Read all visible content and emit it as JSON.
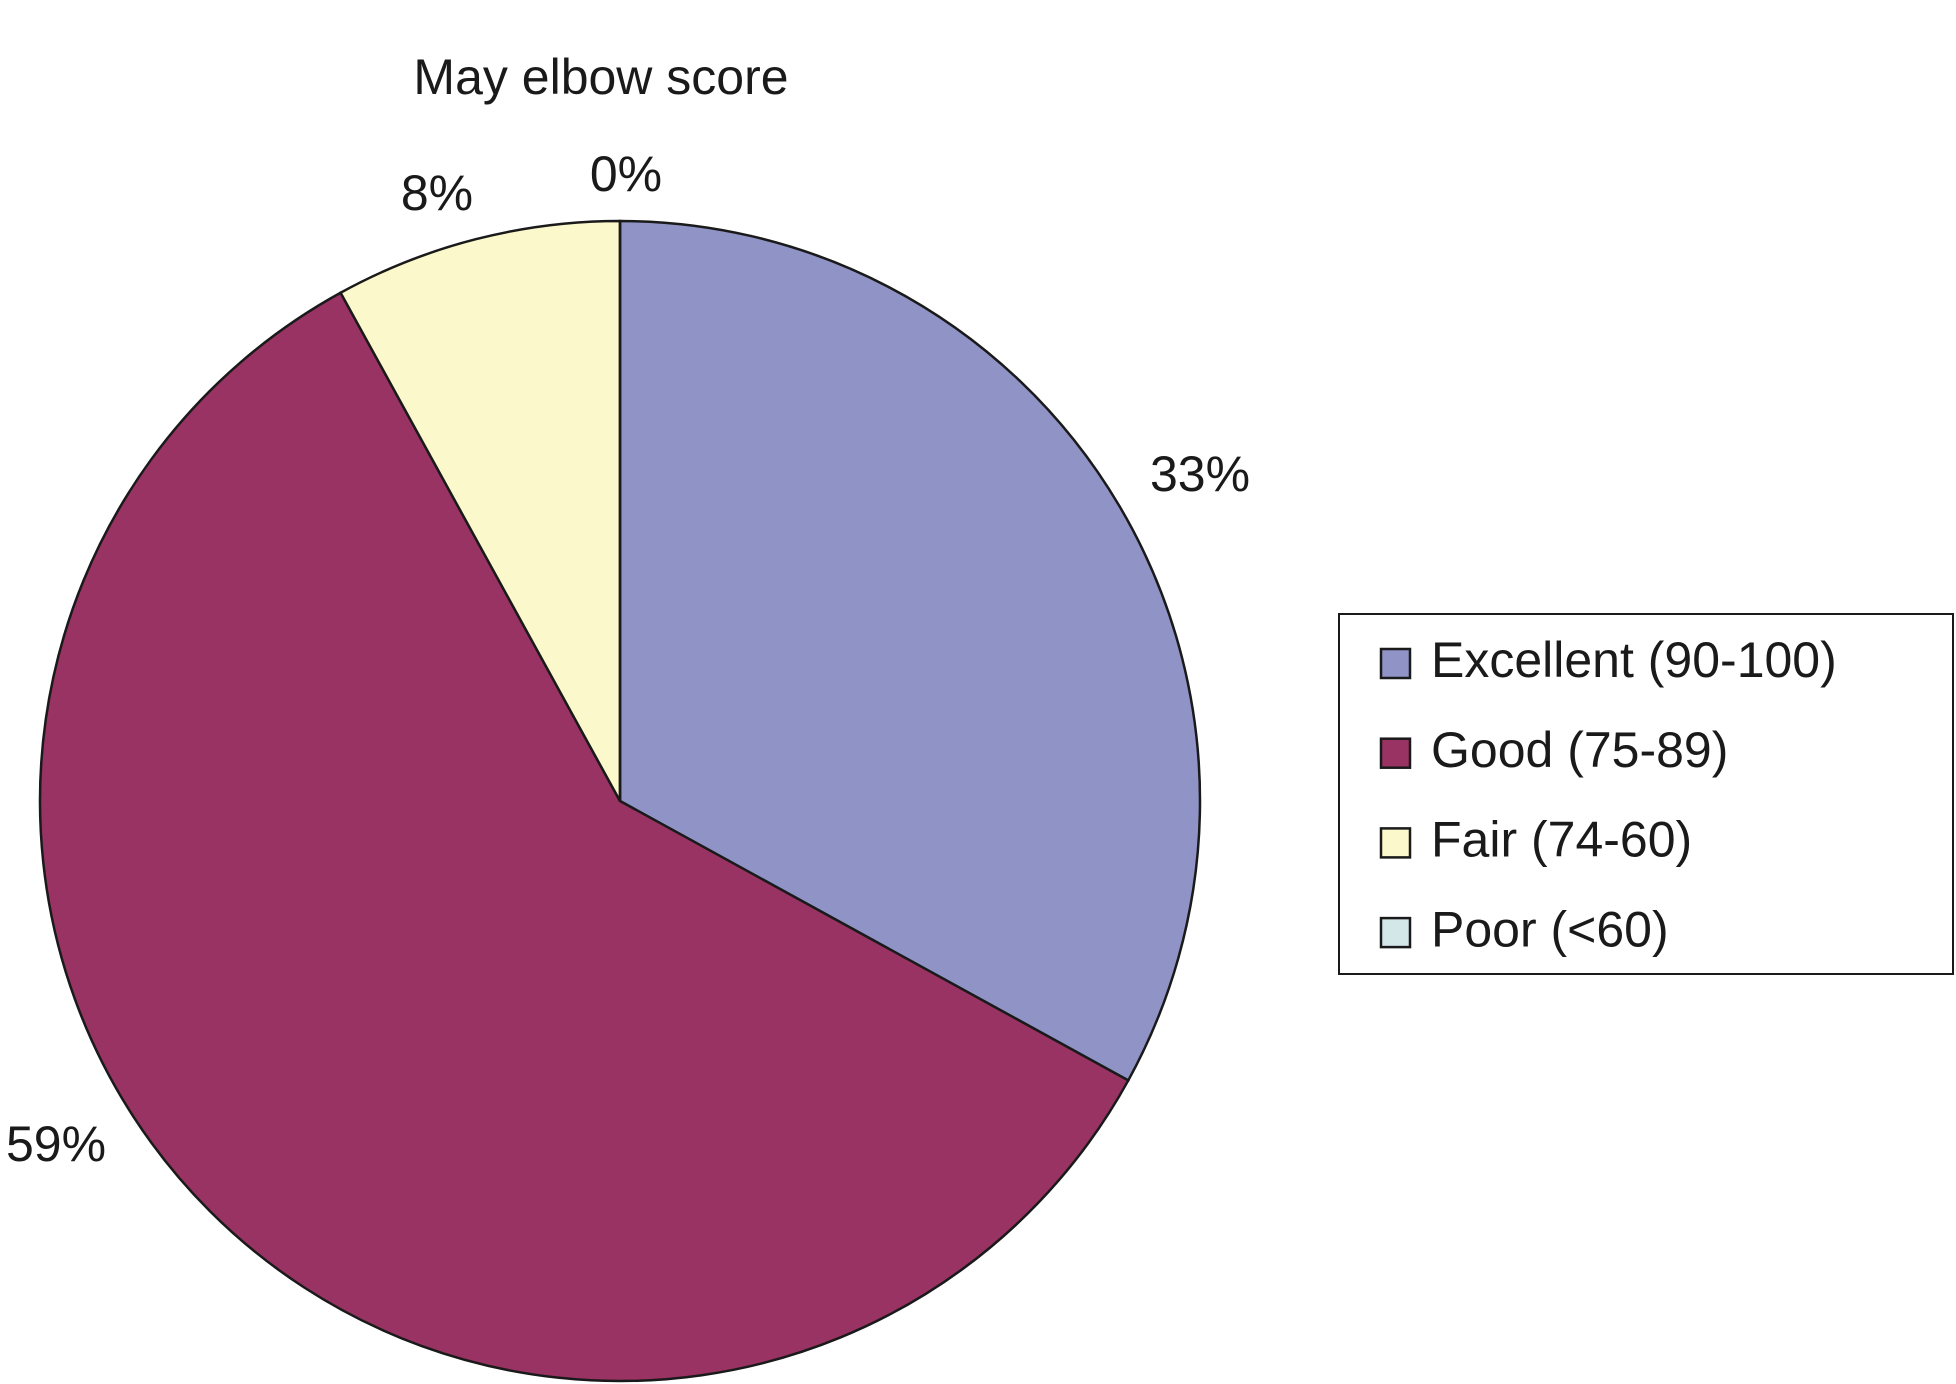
{
  "chart_data": {
    "type": "pie",
    "title": "May elbow score",
    "categories": [
      "Excellent (90-100)",
      "Good (75-89)",
      "Fair (74-60)",
      "Poor (<60)"
    ],
    "values": [
      33,
      59,
      8,
      0
    ],
    "value_labels": [
      "33%",
      "59%",
      "8%",
      "0%"
    ],
    "colors": [
      "#9093c6",
      "#993363",
      "#fbf9cc",
      "#d3e6e8"
    ]
  }
}
